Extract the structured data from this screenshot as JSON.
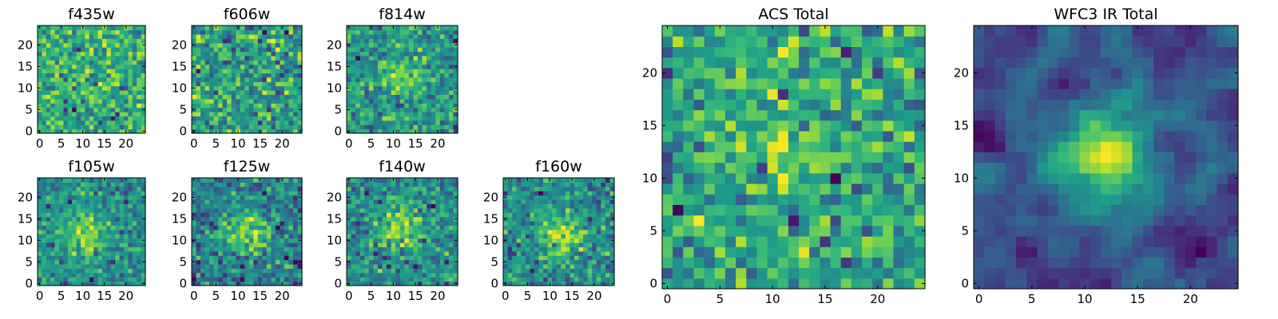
{
  "figure": {
    "colormap": "viridis",
    "background": "#ffffff"
  },
  "chart_data": [
    {
      "type": "heatmap",
      "title": "f435w",
      "xlim": [
        -0.5,
        24.5
      ],
      "ylim": [
        -0.5,
        24.5
      ],
      "xticks": [
        0,
        5,
        10,
        15,
        20
      ],
      "yticks": [
        0,
        5,
        10,
        15,
        20
      ],
      "grid": false,
      "nx": 25,
      "ny": 25,
      "texture": "noise",
      "seed": 11,
      "blob": null
    },
    {
      "type": "heatmap",
      "title": "f606w",
      "xlim": [
        -0.5,
        24.5
      ],
      "ylim": [
        -0.5,
        24.5
      ],
      "xticks": [
        0,
        5,
        10,
        15,
        20
      ],
      "yticks": [
        0,
        5,
        10,
        15,
        20
      ],
      "grid": false,
      "nx": 25,
      "ny": 25,
      "texture": "noise",
      "seed": 23,
      "blob": null
    },
    {
      "type": "heatmap",
      "title": "f814w",
      "xlim": [
        -0.5,
        24.5
      ],
      "ylim": [
        -0.5,
        24.5
      ],
      "xticks": [
        0,
        5,
        10,
        15,
        20
      ],
      "yticks": [
        0,
        5,
        10,
        15,
        20
      ],
      "grid": false,
      "nx": 25,
      "ny": 25,
      "texture": "noise",
      "seed": 37,
      "blob": {
        "cx": 12,
        "cy": 13,
        "sigma": 3,
        "amp": 0.25
      }
    },
    {
      "type": "heatmap",
      "title": "f105w",
      "xlim": [
        -0.5,
        24.5
      ],
      "ylim": [
        -0.5,
        24.5
      ],
      "xticks": [
        0,
        5,
        10,
        15,
        20
      ],
      "yticks": [
        0,
        5,
        10,
        15,
        20
      ],
      "grid": false,
      "nx": 25,
      "ny": 25,
      "texture": "noise",
      "seed": 41,
      "blob": {
        "cx": 11,
        "cy": 12,
        "sigma": 3.5,
        "amp": 0.45
      }
    },
    {
      "type": "heatmap",
      "title": "f125w",
      "xlim": [
        -0.5,
        24.5
      ],
      "ylim": [
        -0.5,
        24.5
      ],
      "xticks": [
        0,
        5,
        10,
        15,
        20
      ],
      "yticks": [
        0,
        5,
        10,
        15,
        20
      ],
      "grid": false,
      "nx": 25,
      "ny": 25,
      "texture": "noise",
      "seed": 53,
      "blob": {
        "cx": 12,
        "cy": 12,
        "sigma": 3.5,
        "amp": 0.45
      }
    },
    {
      "type": "heatmap",
      "title": "f140w",
      "xlim": [
        -0.5,
        24.5
      ],
      "ylim": [
        -0.5,
        24.5
      ],
      "xticks": [
        0,
        5,
        10,
        15,
        20
      ],
      "yticks": [
        0,
        5,
        10,
        15,
        20
      ],
      "grid": false,
      "nx": 25,
      "ny": 25,
      "texture": "noise",
      "seed": 67,
      "blob": {
        "cx": 12,
        "cy": 13,
        "sigma": 3.5,
        "amp": 0.45
      }
    },
    {
      "type": "heatmap",
      "title": "f160w",
      "xlim": [
        -0.5,
        24.5
      ],
      "ylim": [
        -0.5,
        24.5
      ],
      "xticks": [
        0,
        5,
        10,
        15,
        20
      ],
      "yticks": [
        0,
        5,
        10,
        15,
        20
      ],
      "grid": false,
      "nx": 25,
      "ny": 25,
      "texture": "noise",
      "seed": 71,
      "blob": {
        "cx": 13,
        "cy": 11,
        "sigma": 3.5,
        "amp": 0.55
      }
    },
    {
      "type": "heatmap",
      "title": "ACS Total",
      "xlim": [
        -0.5,
        24.5
      ],
      "ylim": [
        -0.5,
        24.5
      ],
      "xticks": [
        0,
        5,
        10,
        15,
        20
      ],
      "yticks": [
        0,
        5,
        10,
        15,
        20
      ],
      "grid": false,
      "nx": 25,
      "ny": 25,
      "texture": "noise",
      "seed": 83,
      "blob": {
        "cx": 12,
        "cy": 12,
        "sigma": 4,
        "amp": 0.15
      }
    },
    {
      "type": "heatmap",
      "title": "WFC3 IR Total",
      "xlim": [
        -0.5,
        24.5
      ],
      "ylim": [
        -0.5,
        24.5
      ],
      "xticks": [
        0,
        5,
        10,
        15,
        20
      ],
      "yticks": [
        0,
        5,
        10,
        15,
        20
      ],
      "grid": false,
      "nx": 25,
      "ny": 25,
      "texture": "smooth",
      "seed": 97,
      "blob": {
        "cx": 12,
        "cy": 12,
        "sigma": 3.5,
        "amp": 0.6
      }
    }
  ]
}
